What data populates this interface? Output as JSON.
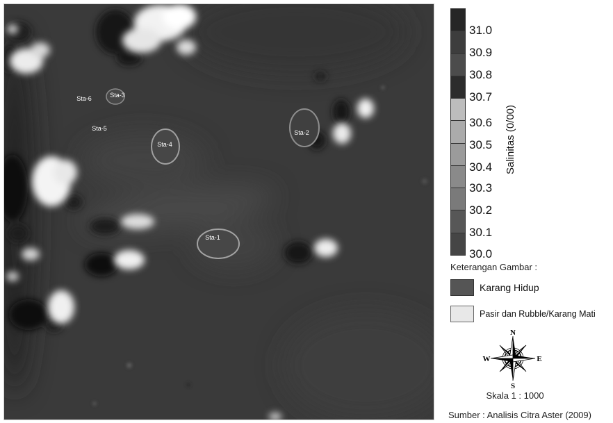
{
  "map": {
    "stations": [
      "Sta-1",
      "Sta-2",
      "Sta-3",
      "Sta-4",
      "Sta-5",
      "Sta-6"
    ]
  },
  "legend": {
    "colorbar": {
      "title": "Salinitas (0/00)",
      "ticks": [
        "31.0",
        "30.9",
        "30.8",
        "30.7",
        "30.6",
        "30.5",
        "30.4",
        "30.3",
        "30.2",
        "30.1",
        "30.0"
      ],
      "colors": [
        "#262626",
        "#3d3d3d",
        "#4c4c4c",
        "#2c2c2c",
        "#bdbdbd",
        "#ababab",
        "#9b9b9b",
        "#8a8a8a",
        "#7a7a7a",
        "#575757",
        "#454545"
      ]
    },
    "keterangan_title": "Keterangan Gambar :",
    "items": [
      {
        "label": "Karang Hidup",
        "color": "#555555"
      },
      {
        "label": "Pasir dan Rubble/Karang Mati",
        "color": "#e8e8e8"
      }
    ],
    "compass": {
      "n": "N",
      "s": "S",
      "e": "E",
      "w": "W"
    },
    "scale": "Skala 1 : 1000",
    "source": "Sumber : Analisis Citra Aster (2009)"
  }
}
